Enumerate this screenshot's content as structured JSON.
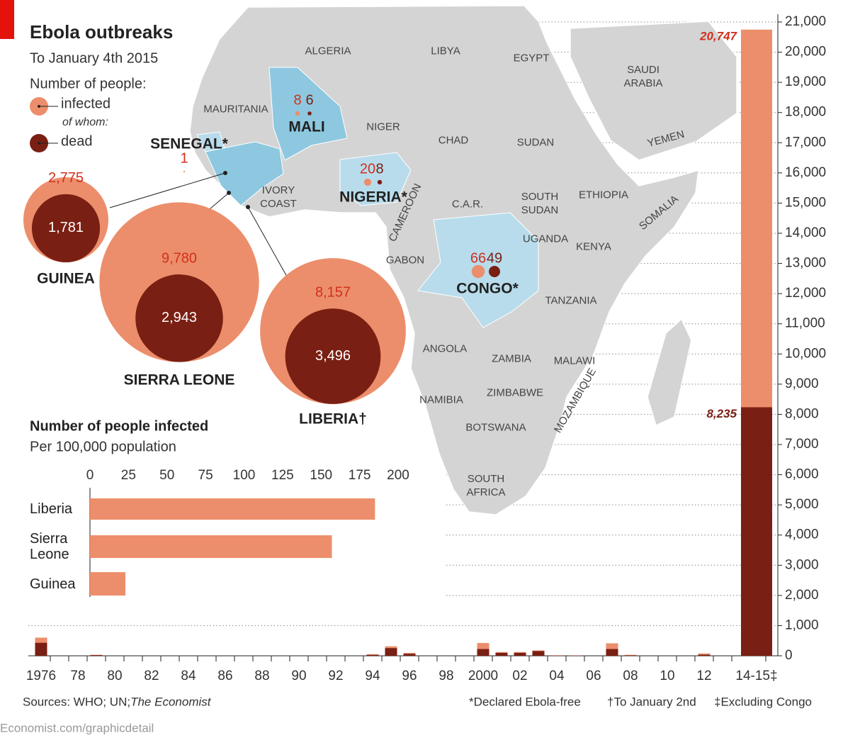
{
  "header": {
    "title": "Ebola outbreaks",
    "subtitle": "To January 4th 2015",
    "legend_heading": "Number of people:",
    "of_whom": "of whom:"
  },
  "map": {
    "labels": [
      "ALGERIA",
      "LIBYA",
      "EGYPT",
      "SAUDI ARABIA",
      "MAURITANIA",
      "NIGER",
      "CHAD",
      "SUDAN",
      "YEMEN",
      "IVORY COAST",
      "CAMEROON",
      "C.A.R.",
      "SOUTH SUDAN",
      "ETHIOPIA",
      "SOMALIA",
      "UGANDA",
      "KENYA",
      "GABON",
      "TANZANIA",
      "ANGOLA",
      "ZAMBIA",
      "MALAWI",
      "NAMIBIA",
      "ZIMBABWE",
      "MOZAMBIQUE",
      "BOTSWANA",
      "SOUTH AFRICA"
    ]
  },
  "chart_data": [
    {
      "type": "bubble",
      "categories": [
        "GUINEA",
        "SIERRA LEONE",
        "LIBERIA†",
        "MALI",
        "NIGERIA*",
        "CONGO*",
        "SENEGAL*"
      ],
      "series": [
        {
          "name": "infected",
          "color": "#ec8e6b",
          "values": [
            2775,
            9780,
            8157,
            8,
            20,
            66,
            1
          ],
          "value_labels": [
            "2,775",
            "9,780",
            "8,157",
            null,
            null,
            null,
            null
          ]
        },
        {
          "name": "dead",
          "color": "#7a1f13",
          "values": [
            1781,
            2943,
            3496,
            6,
            8,
            49,
            null
          ],
          "value_labels": [
            "1,781",
            "2,943",
            "3,496",
            null,
            null,
            null,
            null
          ]
        }
      ]
    },
    {
      "type": "hbar",
      "title": "Number of people infected",
      "subtitle": "Per 100,000 population",
      "categories": [
        "Liberia",
        "Sierra Leone",
        "Guinea"
      ],
      "values": [
        185,
        157,
        23
      ],
      "color": "#ec8e6b",
      "xlim": [
        0,
        200
      ],
      "xticks": [
        0,
        25,
        50,
        75,
        100,
        125,
        150,
        175,
        200
      ]
    },
    {
      "type": "overlay_bar",
      "categories": [
        "1976",
        null,
        "78",
        null,
        "80",
        null,
        "82",
        null,
        "84",
        null,
        "86",
        null,
        "88",
        null,
        "90",
        null,
        "92",
        null,
        "94",
        null,
        "96",
        null,
        "98",
        null,
        "2000",
        null,
        "02",
        null,
        "04",
        null,
        "06",
        null,
        "08",
        null,
        "10",
        null,
        "12",
        null,
        "14-15‡"
      ],
      "series": [
        {
          "color": "#ec8e6b",
          "values": [
            602,
            null,
            null,
            34,
            null,
            null,
            null,
            null,
            null,
            null,
            null,
            null,
            null,
            null,
            null,
            null,
            null,
            null,
            52,
            315,
            97,
            null,
            null,
            null,
            425,
            124,
            124,
            178,
            17,
            12,
            null,
            413,
            32,
            null,
            null,
            null,
            77,
            null,
            20747
          ],
          "value_labels": [
            null,
            null,
            null,
            null,
            null,
            null,
            null,
            null,
            null,
            null,
            null,
            null,
            null,
            null,
            null,
            null,
            null,
            null,
            null,
            null,
            null,
            null,
            null,
            null,
            null,
            null,
            null,
            null,
            null,
            null,
            null,
            null,
            null,
            null,
            null,
            null,
            null,
            null,
            "20,747"
          ]
        },
        {
          "color": "#7a1f13",
          "values": [
            431,
            null,
            null,
            22,
            null,
            null,
            null,
            null,
            null,
            null,
            null,
            null,
            null,
            null,
            null,
            null,
            null,
            null,
            31,
            254,
            66,
            null,
            null,
            null,
            224,
            97,
            97,
            157,
            7,
            10,
            null,
            224,
            15,
            null,
            null,
            null,
            36,
            null,
            8235
          ],
          "value_labels": [
            null,
            null,
            null,
            null,
            null,
            null,
            null,
            null,
            null,
            null,
            null,
            null,
            null,
            null,
            null,
            null,
            null,
            null,
            null,
            null,
            null,
            null,
            null,
            null,
            null,
            null,
            null,
            null,
            null,
            null,
            null,
            null,
            null,
            null,
            null,
            null,
            null,
            null,
            "8,235"
          ]
        }
      ],
      "ylim": [
        0,
        21000
      ],
      "yticks": [
        0,
        {
          "value": 1000,
          "label": "1,000"
        },
        {
          "value": 2000,
          "label": "2,000"
        },
        {
          "value": 3000,
          "label": "3,000"
        },
        {
          "value": 4000,
          "label": "4,000"
        },
        {
          "value": 5000,
          "label": "5,000"
        },
        {
          "value": 6000,
          "label": "6,000"
        },
        {
          "value": 7000,
          "label": "7,000"
        },
        {
          "value": 8000,
          "label": "8,000"
        },
        {
          "value": 9000,
          "label": "9,000"
        },
        {
          "value": 10000,
          "label": "10,000"
        },
        {
          "value": 11000,
          "label": "11,000"
        },
        {
          "value": 12000,
          "label": "12,000"
        },
        {
          "value": 13000,
          "label": "13,000"
        },
        {
          "value": 14000,
          "label": "14,000"
        },
        {
          "value": 15000,
          "label": "15,000"
        },
        {
          "value": 16000,
          "label": "16,000"
        },
        {
          "value": 17000,
          "label": "17,000"
        },
        {
          "value": 18000,
          "label": "18,000"
        },
        {
          "value": 19000,
          "label": "19,000"
        },
        {
          "value": 20000,
          "label": "20,000"
        },
        {
          "value": 21000,
          "label": "21,000"
        }
      ],
      "grid": true
    }
  ],
  "footer": {
    "sources": "Sources: WHO; UN; ",
    "sources_italic": "The Economist",
    "notes": [
      "*Declared Ebola-free",
      "†To January 2nd",
      "‡Excluding Congo"
    ],
    "url": "Economist.com/graphicdetail"
  }
}
